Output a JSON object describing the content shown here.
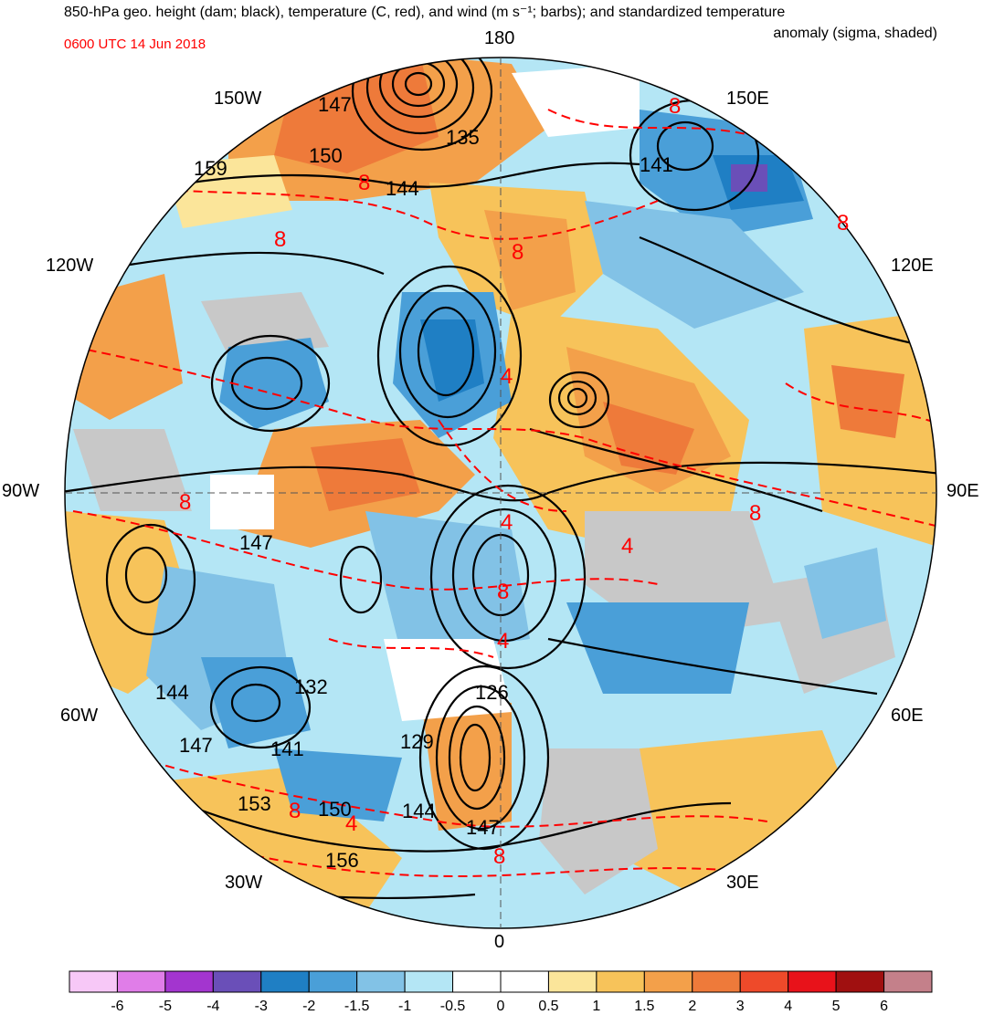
{
  "title_line1": "850-hPa geo. height (dam; black), temperature (C, red), and wind (m s⁻¹; barbs); and standardized temperature",
  "title_line2": "anomaly (sigma, shaded)",
  "timestamp": "0600 UTC 14 Jun 2018",
  "longitude_labels": {
    "top": "180",
    "bottom": "0",
    "left": "90W",
    "right": "90E",
    "w150": "150W",
    "e150": "150E",
    "w120": "120W",
    "e120": "120E",
    "w60": "60W",
    "e60": "60E",
    "w30": "30W",
    "e30": "30E"
  },
  "height_contour_labels": [
    "147",
    "150",
    "159",
    "135",
    "144",
    "141",
    "147",
    "132",
    "126",
    "129",
    "144",
    "147",
    "141",
    "153",
    "150",
    "144",
    "156",
    "147"
  ],
  "temperature_contour_labels": [
    "8",
    "8",
    "8",
    "8",
    "4",
    "8",
    "4",
    "8",
    "4",
    "8",
    "4",
    "4",
    "8",
    "8",
    "8"
  ],
  "colorbar": {
    "labels": [
      "-6",
      "-5",
      "-4",
      "-3",
      "-2",
      "-1.5",
      "-1",
      "-0.5",
      "0",
      "0.5",
      "1",
      "1.5",
      "2",
      "3",
      "4",
      "5",
      "6"
    ],
    "colors": [
      "#f7c8f7",
      "#e07de8",
      "#a335cf",
      "#6a4fb8",
      "#1f7fc4",
      "#4a9fd8",
      "#82c2e6",
      "#b4e6f5",
      "#ffffff",
      "#ffffff",
      "#fbe59a",
      "#f7c35a",
      "#f3a04a",
      "#ee7a3a",
      "#ee4a2a",
      "#e8121a",
      "#a01010",
      "#c4808a"
    ]
  },
  "colors": {
    "height_contour": "#000000",
    "temperature_contour": "#ff0000",
    "land_gray": "#c8c8c8"
  }
}
